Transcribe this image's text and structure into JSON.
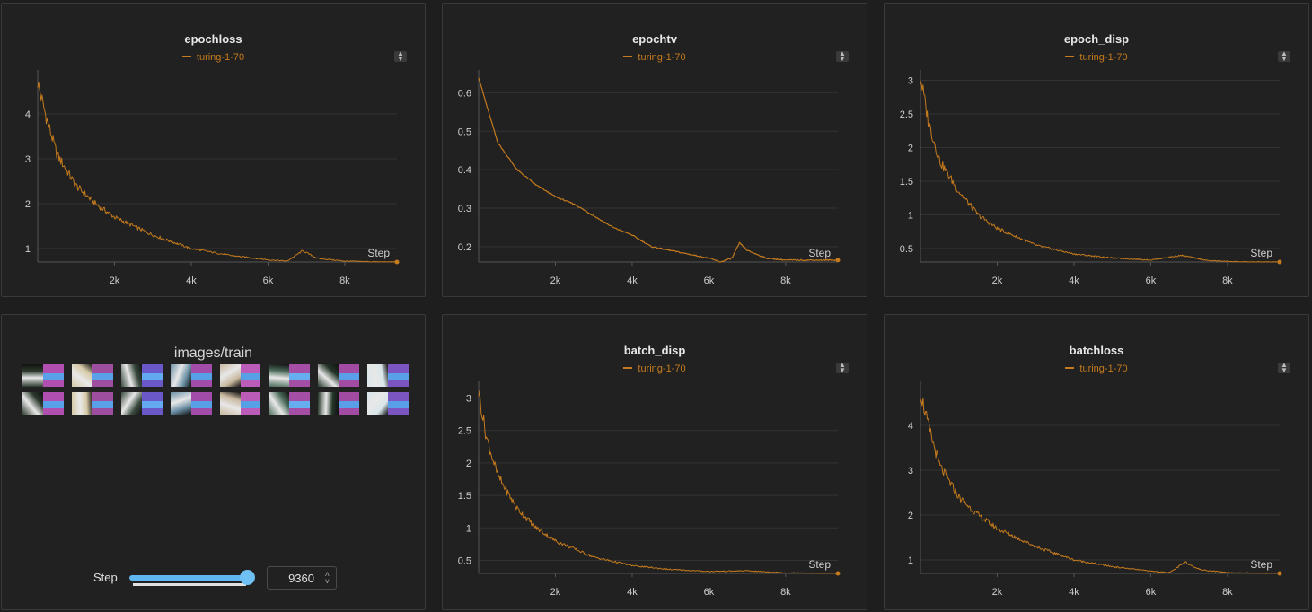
{
  "panels": [
    {
      "title": "epochloss"
    },
    {
      "title": "epochtv"
    },
    {
      "title": "epoch_disp"
    },
    {
      "title": "images/train"
    },
    {
      "title": "batch_disp"
    },
    {
      "title": "batchloss"
    }
  ],
  "legend_run": "turing-1-70",
  "x_axis_label": "Step",
  "x_ticks": [
    "2k",
    "4k",
    "6k",
    "8k"
  ],
  "images_panel": {
    "title": "images/train",
    "step_label": "Step",
    "step_value": "9360",
    "slider_fraction": 1.0
  },
  "colors": {
    "series": "#c47a1d",
    "slider": "#5fb6f0",
    "background": "#1e1e1e",
    "panel": "#212121"
  },
  "chart_data": [
    {
      "type": "line",
      "title": "epochloss",
      "series": [
        {
          "name": "turing-1-70",
          "x": [
            0,
            200,
            500,
            1000,
            1500,
            2000,
            3000,
            4000,
            5000,
            6000,
            6500,
            6900,
            7300,
            8000,
            9000,
            9360
          ],
          "y": [
            4.7,
            4.0,
            3.1,
            2.4,
            2.0,
            1.7,
            1.3,
            1.0,
            0.85,
            0.75,
            0.72,
            0.95,
            0.78,
            0.72,
            0.7,
            0.7
          ]
        }
      ],
      "xlabel": "Step",
      "ylim": [
        0.7,
        4.9
      ],
      "xlim": [
        0,
        9360
      ],
      "yticks": [
        1,
        2,
        3,
        4
      ],
      "xticks": [
        2000,
        4000,
        6000,
        8000
      ],
      "grid": true
    },
    {
      "type": "line",
      "title": "epochtv",
      "series": [
        {
          "name": "turing-1-70",
          "x": [
            0,
            200,
            500,
            1000,
            1500,
            2000,
            2500,
            3000,
            3500,
            4000,
            4500,
            5000,
            5500,
            6000,
            6300,
            6600,
            6800,
            7000,
            7500,
            8000,
            9000,
            9360
          ],
          "y": [
            0.64,
            0.57,
            0.47,
            0.4,
            0.36,
            0.33,
            0.31,
            0.28,
            0.25,
            0.23,
            0.2,
            0.19,
            0.18,
            0.17,
            0.16,
            0.17,
            0.21,
            0.19,
            0.17,
            0.165,
            0.165,
            0.165
          ]
        }
      ],
      "xlabel": "Step",
      "ylim": [
        0.16,
        0.65
      ],
      "xlim": [
        0,
        9360
      ],
      "yticks": [
        0.2,
        0.3,
        0.4,
        0.5,
        0.6
      ],
      "xticks": [
        2000,
        4000,
        6000,
        8000
      ],
      "grid": true
    },
    {
      "type": "line",
      "title": "epoch_disp",
      "series": [
        {
          "name": "turing-1-70",
          "x": [
            0,
            200,
            500,
            1000,
            1500,
            2000,
            3000,
            4000,
            5000,
            6000,
            6800,
            7500,
            8500,
            9360
          ],
          "y": [
            3.05,
            2.4,
            1.8,
            1.35,
            1.0,
            0.8,
            0.55,
            0.42,
            0.36,
            0.33,
            0.4,
            0.32,
            0.3,
            0.3
          ]
        }
      ],
      "xlabel": "Step",
      "ylim": [
        0.3,
        3.1
      ],
      "xlim": [
        0,
        9360
      ],
      "yticks": [
        0.5,
        1,
        1.5,
        2,
        2.5,
        3
      ],
      "xticks": [
        2000,
        4000,
        6000,
        8000
      ],
      "grid": true
    },
    {
      "type": "line",
      "title": "batch_disp",
      "series": [
        {
          "name": "turing-1-70",
          "x": [
            0,
            200,
            500,
            1000,
            1500,
            2000,
            3000,
            4000,
            5000,
            6000,
            7000,
            8000,
            9000,
            9360
          ],
          "y": [
            3.1,
            2.4,
            1.8,
            1.3,
            1.0,
            0.8,
            0.55,
            0.42,
            0.36,
            0.33,
            0.34,
            0.31,
            0.3,
            0.3
          ]
        }
      ],
      "xlabel": "Step",
      "ylim": [
        0.3,
        3.2
      ],
      "xlim": [
        0,
        9360
      ],
      "yticks": [
        0.5,
        1,
        1.5,
        2,
        2.5,
        3
      ],
      "xticks": [
        2000,
        4000,
        6000,
        8000
      ],
      "grid": true
    },
    {
      "type": "line",
      "title": "batchloss",
      "series": [
        {
          "name": "turing-1-70",
          "x": [
            0,
            200,
            500,
            1000,
            1500,
            2000,
            3000,
            4000,
            5000,
            6000,
            6500,
            6900,
            7300,
            8000,
            9000,
            9360
          ],
          "y": [
            4.75,
            4.0,
            3.1,
            2.4,
            2.0,
            1.7,
            1.3,
            1.0,
            0.85,
            0.75,
            0.72,
            0.95,
            0.78,
            0.72,
            0.7,
            0.7
          ]
        }
      ],
      "xlabel": "Step",
      "ylim": [
        0.7,
        4.9
      ],
      "xlim": [
        0,
        9360
      ],
      "yticks": [
        1,
        2,
        3,
        4
      ],
      "xticks": [
        2000,
        4000,
        6000,
        8000
      ],
      "grid": true
    }
  ]
}
